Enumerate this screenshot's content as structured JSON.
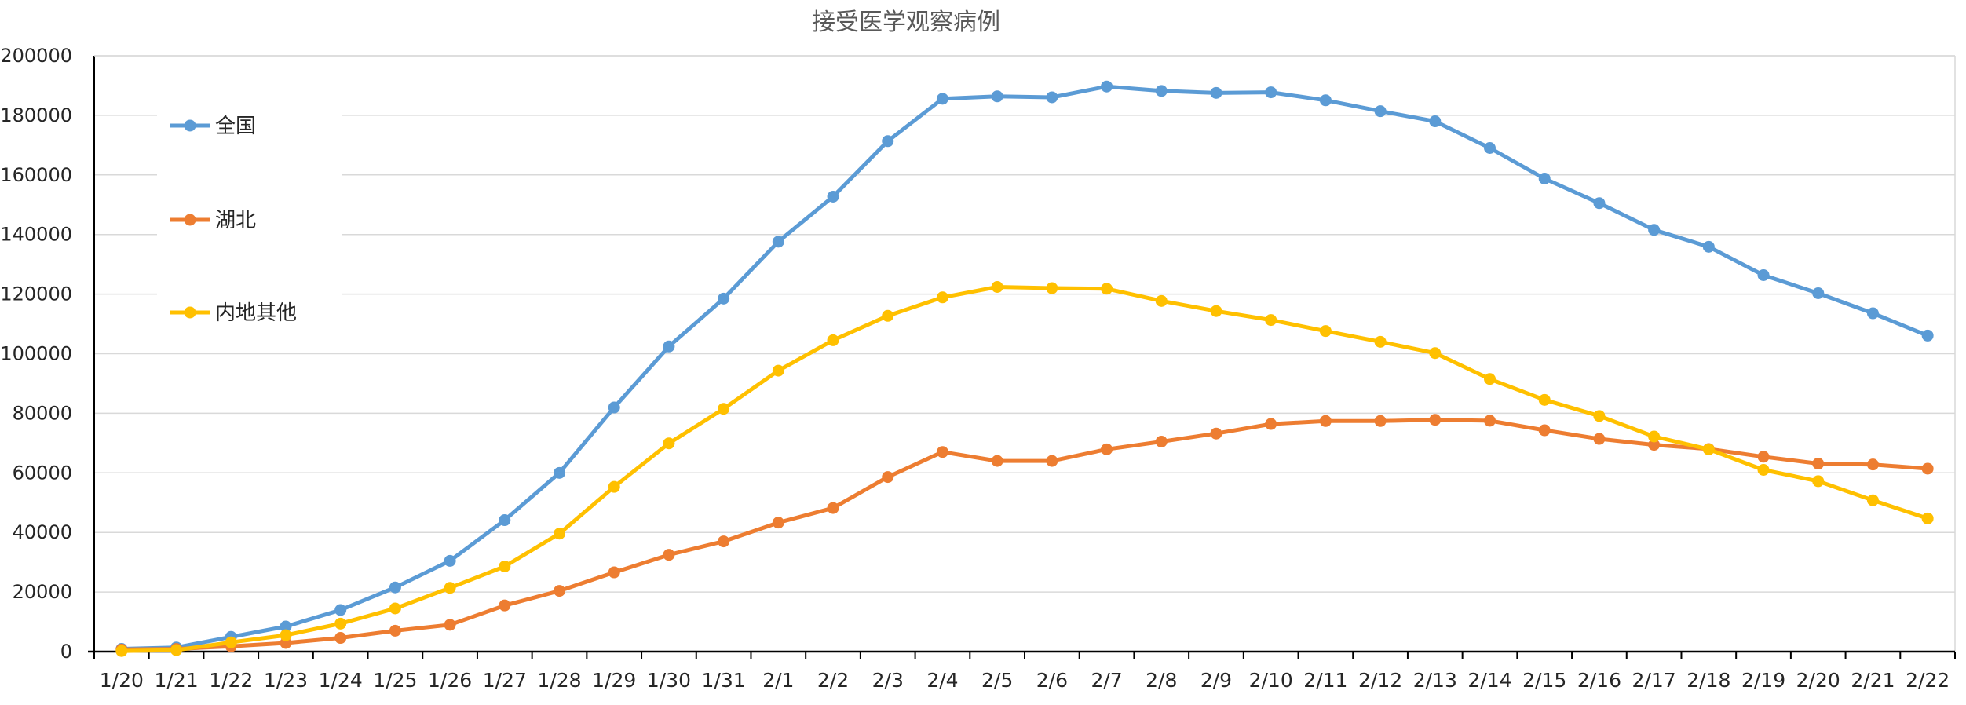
{
  "chart_data": {
    "type": "line",
    "title": "接受医学观察病例",
    "xlabel": "",
    "ylabel": "",
    "categories": [
      "1/20",
      "1/21",
      "1/22",
      "1/23",
      "1/24",
      "1/25",
      "1/26",
      "1/27",
      "1/28",
      "1/29",
      "1/30",
      "1/31",
      "2/1",
      "2/2",
      "2/3",
      "2/4",
      "2/5",
      "2/6",
      "2/7",
      "2/8",
      "2/9",
      "2/10",
      "2/11",
      "2/12",
      "2/13",
      "2/14",
      "2/15",
      "2/16",
      "2/17",
      "2/18",
      "2/19",
      "2/20",
      "2/21",
      "2/22"
    ],
    "ylim": [
      0,
      200000
    ],
    "yticks": [
      0,
      20000,
      40000,
      60000,
      80000,
      100000,
      120000,
      140000,
      160000,
      180000,
      200000
    ],
    "grid": true,
    "legend_position": "top-left",
    "series": [
      {
        "name": "全国",
        "color": "#5b9bd5",
        "values": [
          922,
          1394,
          4928,
          8420,
          13967,
          21556,
          30453,
          44132,
          59990,
          81947,
          102427,
          118478,
          137594,
          152700,
          171329,
          185555,
          186354,
          186045,
          189660,
          188183,
          187518,
          187728,
          185037,
          181386,
          177984,
          169039,
          158764,
          150539,
          141552,
          135881,
          126363,
          120302,
          113564,
          106089
        ]
      },
      {
        "name": "湖北",
        "color": "#ed7d31",
        "values": [
          700,
          900,
          1800,
          2900,
          4600,
          7000,
          9000,
          15500,
          20400,
          26600,
          32500,
          37000,
          43300,
          48200,
          58600,
          67000,
          64000,
          64000,
          67900,
          70500,
          73200,
          76400,
          77400,
          77400,
          77800,
          77500,
          74300,
          71400,
          69400,
          68000,
          65400,
          63100,
          62800,
          61400
        ]
      },
      {
        "name": "内地其他",
        "color": "#ffc000",
        "values": [
          200,
          500,
          3100,
          5500,
          9400,
          14500,
          21400,
          28600,
          39600,
          55300,
          69900,
          81500,
          94300,
          104500,
          112700,
          118900,
          122400,
          122000,
          121800,
          117700,
          114300,
          111300,
          107600,
          104000,
          100200,
          91500,
          84500,
          79100,
          72200,
          67900,
          61000,
          57200,
          50800,
          44700
        ]
      }
    ]
  }
}
